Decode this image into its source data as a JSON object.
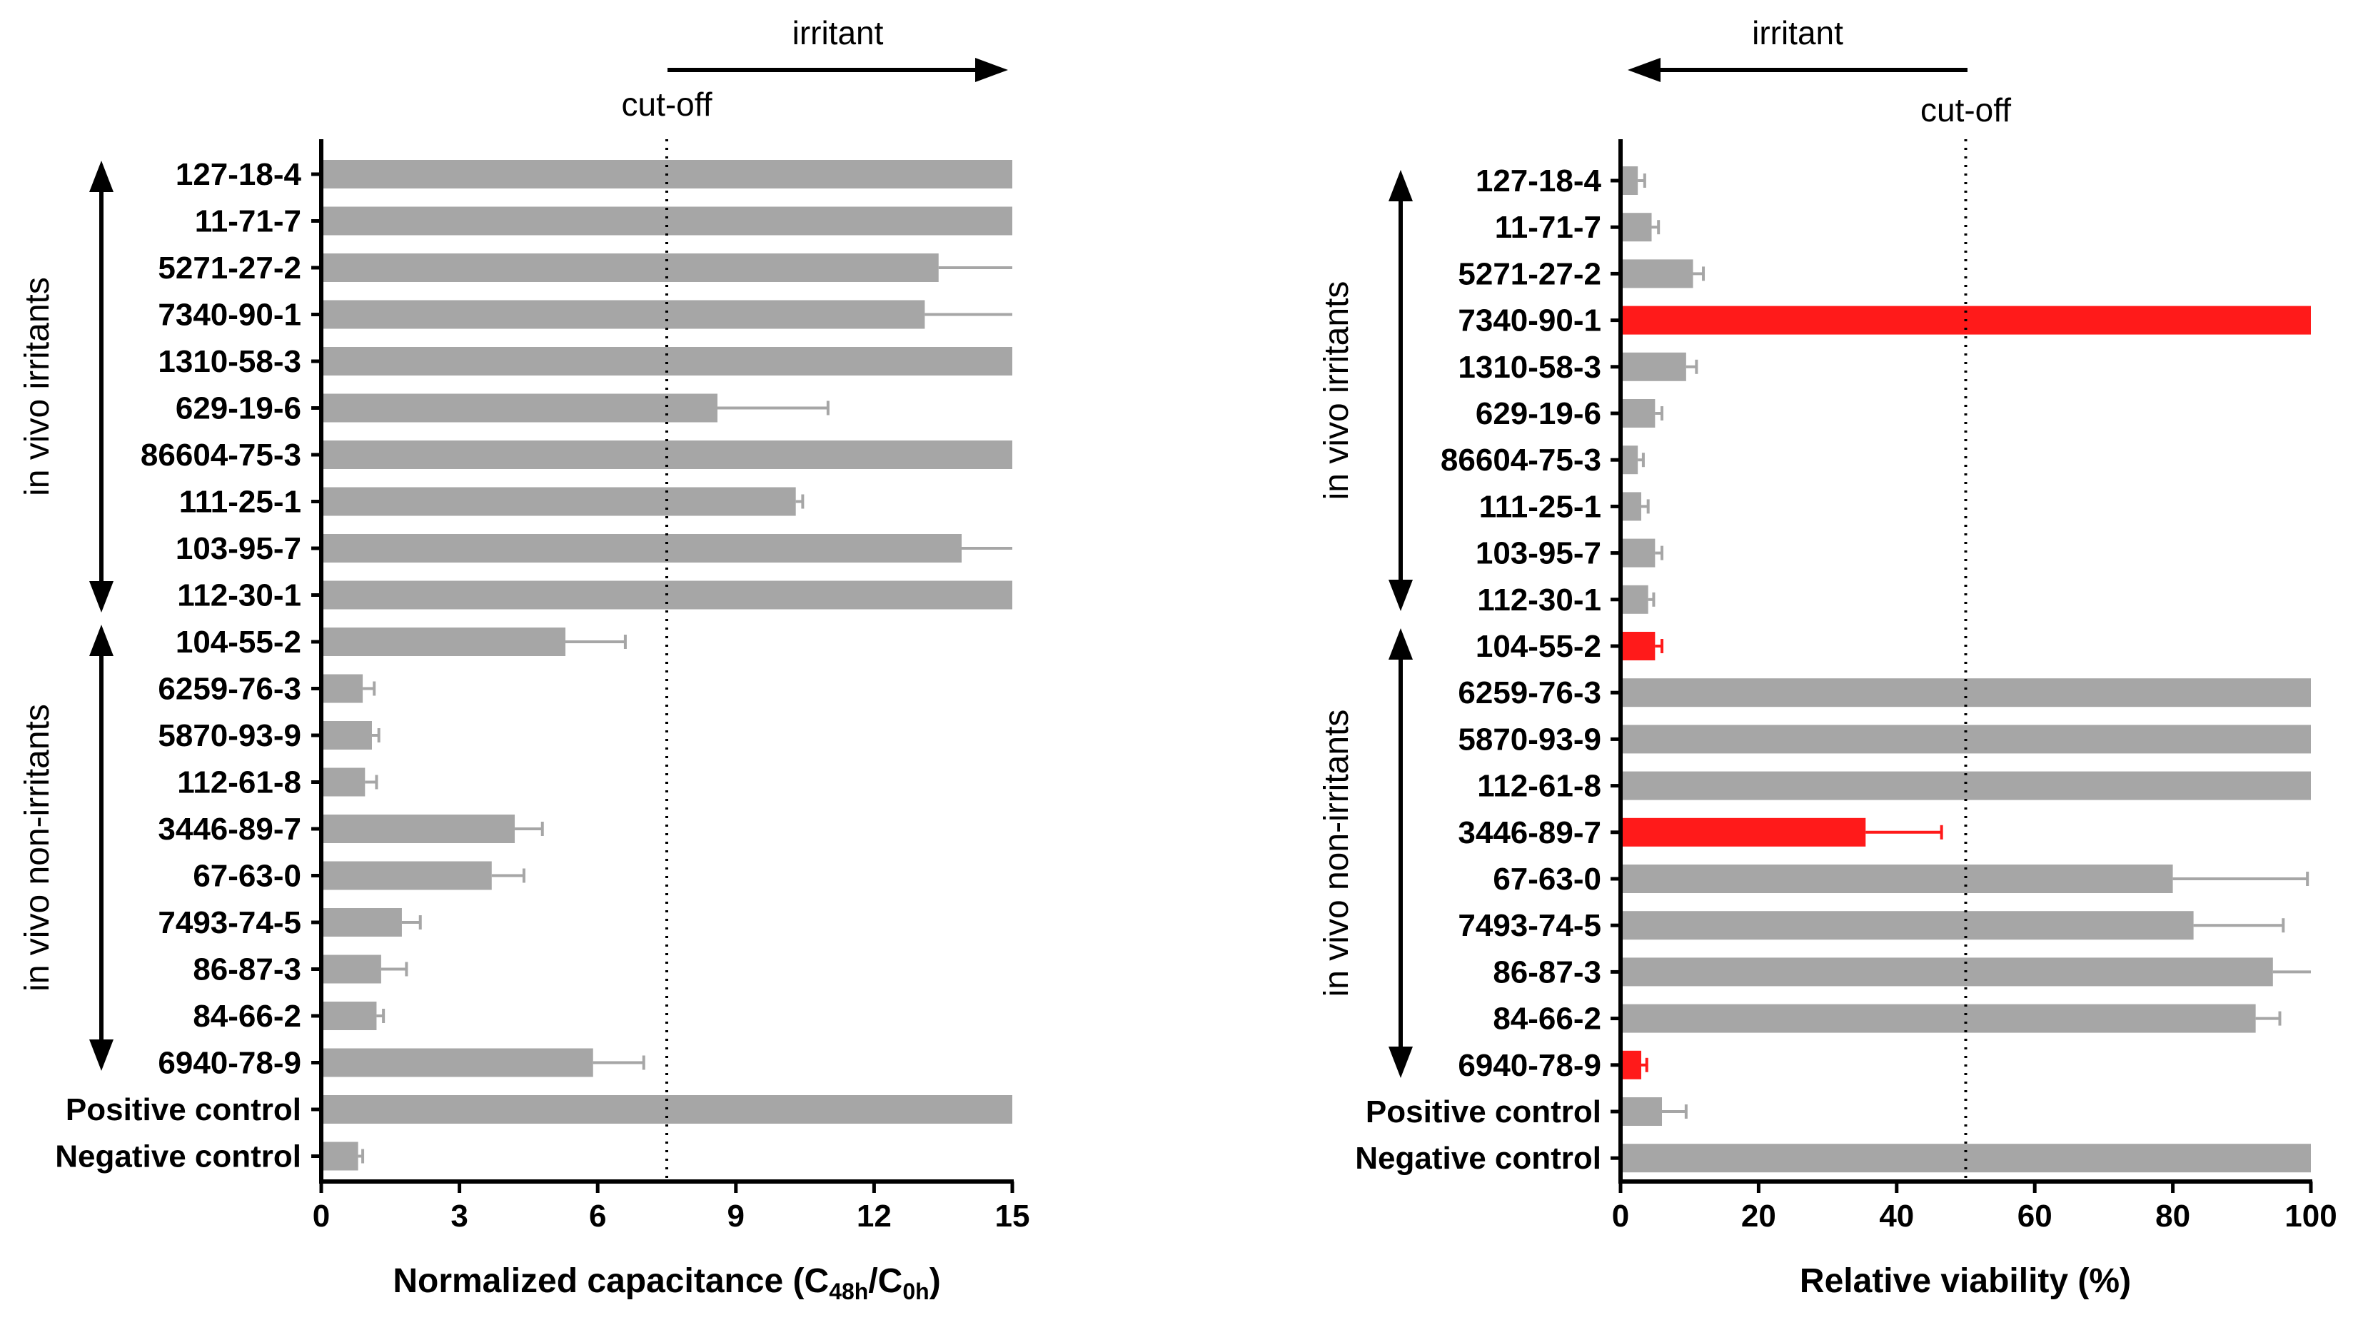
{
  "chart_data": [
    {
      "type": "bar",
      "orientation": "horizontal",
      "xlabel_parts": {
        "pre": "Normalized capacitance (C",
        "sub1": "48h",
        "mid": "/C",
        "sub2": "0h",
        "post": ")"
      },
      "xlim": [
        0,
        15
      ],
      "xticks": [
        "0",
        "3",
        "6",
        "9",
        "12",
        "15"
      ],
      "cutoff": 7.5,
      "cutoff_label": "cut-off",
      "direction_label": "irritant",
      "direction": "right",
      "group_labels": [
        "in vivo irritants",
        "in vivo non-irritants"
      ],
      "categories": [
        "127-18-4",
        "11-71-7",
        "5271-27-2",
        "7340-90-1",
        "1310-58-3",
        "629-19-6",
        "86604-75-3",
        "111-25-1",
        "103-95-7",
        "112-30-1",
        "104-55-2",
        "6259-76-3",
        "5870-93-9",
        "112-61-8",
        "3446-89-7",
        "67-63-0",
        "7493-74-5",
        "86-87-3",
        "84-66-2",
        "6940-78-9",
        "Positive control",
        "Negative control"
      ],
      "values": [
        15,
        15,
        13.4,
        13.1,
        15,
        8.6,
        15,
        10.3,
        13.9,
        15,
        5.3,
        0.9,
        1.1,
        0.95,
        4.2,
        3.7,
        1.75,
        1.3,
        1.2,
        5.9,
        15,
        0.8
      ],
      "errors": [
        0,
        0,
        2.5,
        2.5,
        0,
        2.4,
        0,
        0.15,
        1.5,
        0,
        1.3,
        0.25,
        0.15,
        0.25,
        0.6,
        0.7,
        0.4,
        0.55,
        0.15,
        1.1,
        0,
        0.1
      ],
      "colors": [
        "#a6a6a6",
        "#a6a6a6",
        "#a6a6a6",
        "#a6a6a6",
        "#a6a6a6",
        "#a6a6a6",
        "#a6a6a6",
        "#a6a6a6",
        "#a6a6a6",
        "#a6a6a6",
        "#a6a6a6",
        "#a6a6a6",
        "#a6a6a6",
        "#a6a6a6",
        "#a6a6a6",
        "#a6a6a6",
        "#a6a6a6",
        "#a6a6a6",
        "#a6a6a6",
        "#a6a6a6",
        "#a6a6a6",
        "#a6a6a6"
      ],
      "grid": false
    },
    {
      "type": "bar",
      "orientation": "horizontal",
      "xlabel": "Relative viability (%)",
      "xlim": [
        0,
        100
      ],
      "xticks": [
        "0",
        "20",
        "40",
        "60",
        "80",
        "100"
      ],
      "cutoff": 50,
      "cutoff_label": "cut-off",
      "direction_label": "irritant",
      "direction": "left",
      "group_labels": [
        "in vivo irritants",
        "in vivo non-irritants"
      ],
      "categories": [
        "127-18-4",
        "11-71-7",
        "5271-27-2",
        "7340-90-1",
        "1310-58-3",
        "629-19-6",
        "86604-75-3",
        "111-25-1",
        "103-95-7",
        "112-30-1",
        "104-55-2",
        "6259-76-3",
        "5870-93-9",
        "112-61-8",
        "3446-89-7",
        "67-63-0",
        "7493-74-5",
        "86-87-3",
        "84-66-2",
        "6940-78-9",
        "Positive control",
        "Negative control"
      ],
      "values": [
        2.5,
        4.5,
        10.5,
        100,
        9.5,
        5,
        2.5,
        3,
        5,
        4,
        5,
        100,
        100,
        100,
        35.5,
        80,
        83,
        94.5,
        92,
        3,
        6,
        100
      ],
      "errors": [
        1,
        1,
        1.5,
        0,
        1.5,
        1,
        0.8,
        1,
        1,
        0.8,
        1,
        0,
        0,
        0,
        11,
        19.5,
        13,
        6,
        3.5,
        0.8,
        3.5,
        0
      ],
      "colors": [
        "#a6a6a6",
        "#a6a6a6",
        "#a6a6a6",
        "#ff1a1a",
        "#a6a6a6",
        "#a6a6a6",
        "#a6a6a6",
        "#a6a6a6",
        "#a6a6a6",
        "#a6a6a6",
        "#ff1a1a",
        "#a6a6a6",
        "#a6a6a6",
        "#a6a6a6",
        "#ff1a1a",
        "#a6a6a6",
        "#a6a6a6",
        "#a6a6a6",
        "#a6a6a6",
        "#ff1a1a",
        "#a6a6a6",
        "#a6a6a6"
      ],
      "grid": false
    }
  ]
}
